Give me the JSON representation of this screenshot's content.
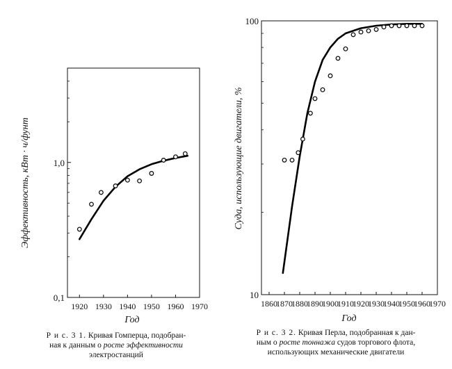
{
  "chart_data": [
    {
      "type": "scatter",
      "scale": "log",
      "xlabel": "Год",
      "ylabel": "Эффективность, кВт · ч/фунт",
      "xlim": [
        1915,
        1970
      ],
      "ylim": [
        0.1,
        5
      ],
      "xticks": [
        1920,
        1930,
        1940,
        1950,
        1960,
        1970
      ],
      "yticks": [
        0.1,
        1.0
      ],
      "ytick_labels": [
        "0,1",
        "1,0"
      ],
      "points": [
        {
          "x": 1920,
          "y": 0.32
        },
        {
          "x": 1925,
          "y": 0.49
        },
        {
          "x": 1929,
          "y": 0.6
        },
        {
          "x": 1935,
          "y": 0.67
        },
        {
          "x": 1940,
          "y": 0.74
        },
        {
          "x": 1945,
          "y": 0.73
        },
        {
          "x": 1950,
          "y": 0.83
        },
        {
          "x": 1955,
          "y": 1.04
        },
        {
          "x": 1960,
          "y": 1.1
        },
        {
          "x": 1964,
          "y": 1.16
        }
      ],
      "fit_curve": {
        "x": [
          1920,
          1925,
          1930,
          1935,
          1940,
          1945,
          1950,
          1955,
          1960,
          1965
        ],
        "y": [
          0.27,
          0.38,
          0.52,
          0.66,
          0.79,
          0.89,
          0.97,
          1.03,
          1.08,
          1.12
        ]
      },
      "caption": {
        "label": "Р и с. 3 1.",
        "line1": "Кривая Гомперца, подобран-",
        "line2_a": "ная к данным о ",
        "line2_b": "росте эффективности",
        "line3": "электростанций"
      }
    },
    {
      "type": "scatter",
      "scale": "log",
      "xlabel": "Год",
      "ylabel": "Суда, использующие двигатели, %",
      "xlim": [
        1855,
        1970
      ],
      "ylim": [
        10,
        100
      ],
      "xticks": [
        1860,
        1870,
        1880,
        1890,
        1900,
        1910,
        1920,
        1930,
        1940,
        1950,
        1960,
        1970
      ],
      "yticks": [
        10,
        100
      ],
      "ytick_labels": [
        "10",
        "100"
      ],
      "points": [
        {
          "x": 1870,
          "y": 31
        },
        {
          "x": 1875,
          "y": 31
        },
        {
          "x": 1879,
          "y": 33
        },
        {
          "x": 1882,
          "y": 37
        },
        {
          "x": 1887,
          "y": 46
        },
        {
          "x": 1890,
          "y": 52
        },
        {
          "x": 1895,
          "y": 56
        },
        {
          "x": 1900,
          "y": 63
        },
        {
          "x": 1905,
          "y": 73
        },
        {
          "x": 1910,
          "y": 79
        },
        {
          "x": 1915,
          "y": 89
        },
        {
          "x": 1920,
          "y": 91
        },
        {
          "x": 1925,
          "y": 92
        },
        {
          "x": 1930,
          "y": 93
        },
        {
          "x": 1935,
          "y": 95
        },
        {
          "x": 1940,
          "y": 96
        },
        {
          "x": 1945,
          "y": 96
        },
        {
          "x": 1950,
          "y": 96
        },
        {
          "x": 1955,
          "y": 96
        },
        {
          "x": 1960,
          "y": 96
        }
      ],
      "fit_curve": {
        "x": [
          1869,
          1875,
          1880,
          1885,
          1890,
          1895,
          1900,
          1905,
          1910,
          1920,
          1930,
          1940,
          1950,
          1960
        ],
        "y": [
          12,
          21,
          32,
          46,
          60,
          72,
          80,
          86,
          90,
          94,
          96,
          97,
          97.5,
          97.5
        ]
      },
      "caption": {
        "label": "Р и с. 3 2.",
        "line1": "Кривая Перла, подобранная к дан-",
        "line2_a": "ным о ",
        "line2_b": "росте тоннажа",
        "line2_c": " судов торгового флота,",
        "line3": "использующих механические двигатели"
      }
    }
  ]
}
